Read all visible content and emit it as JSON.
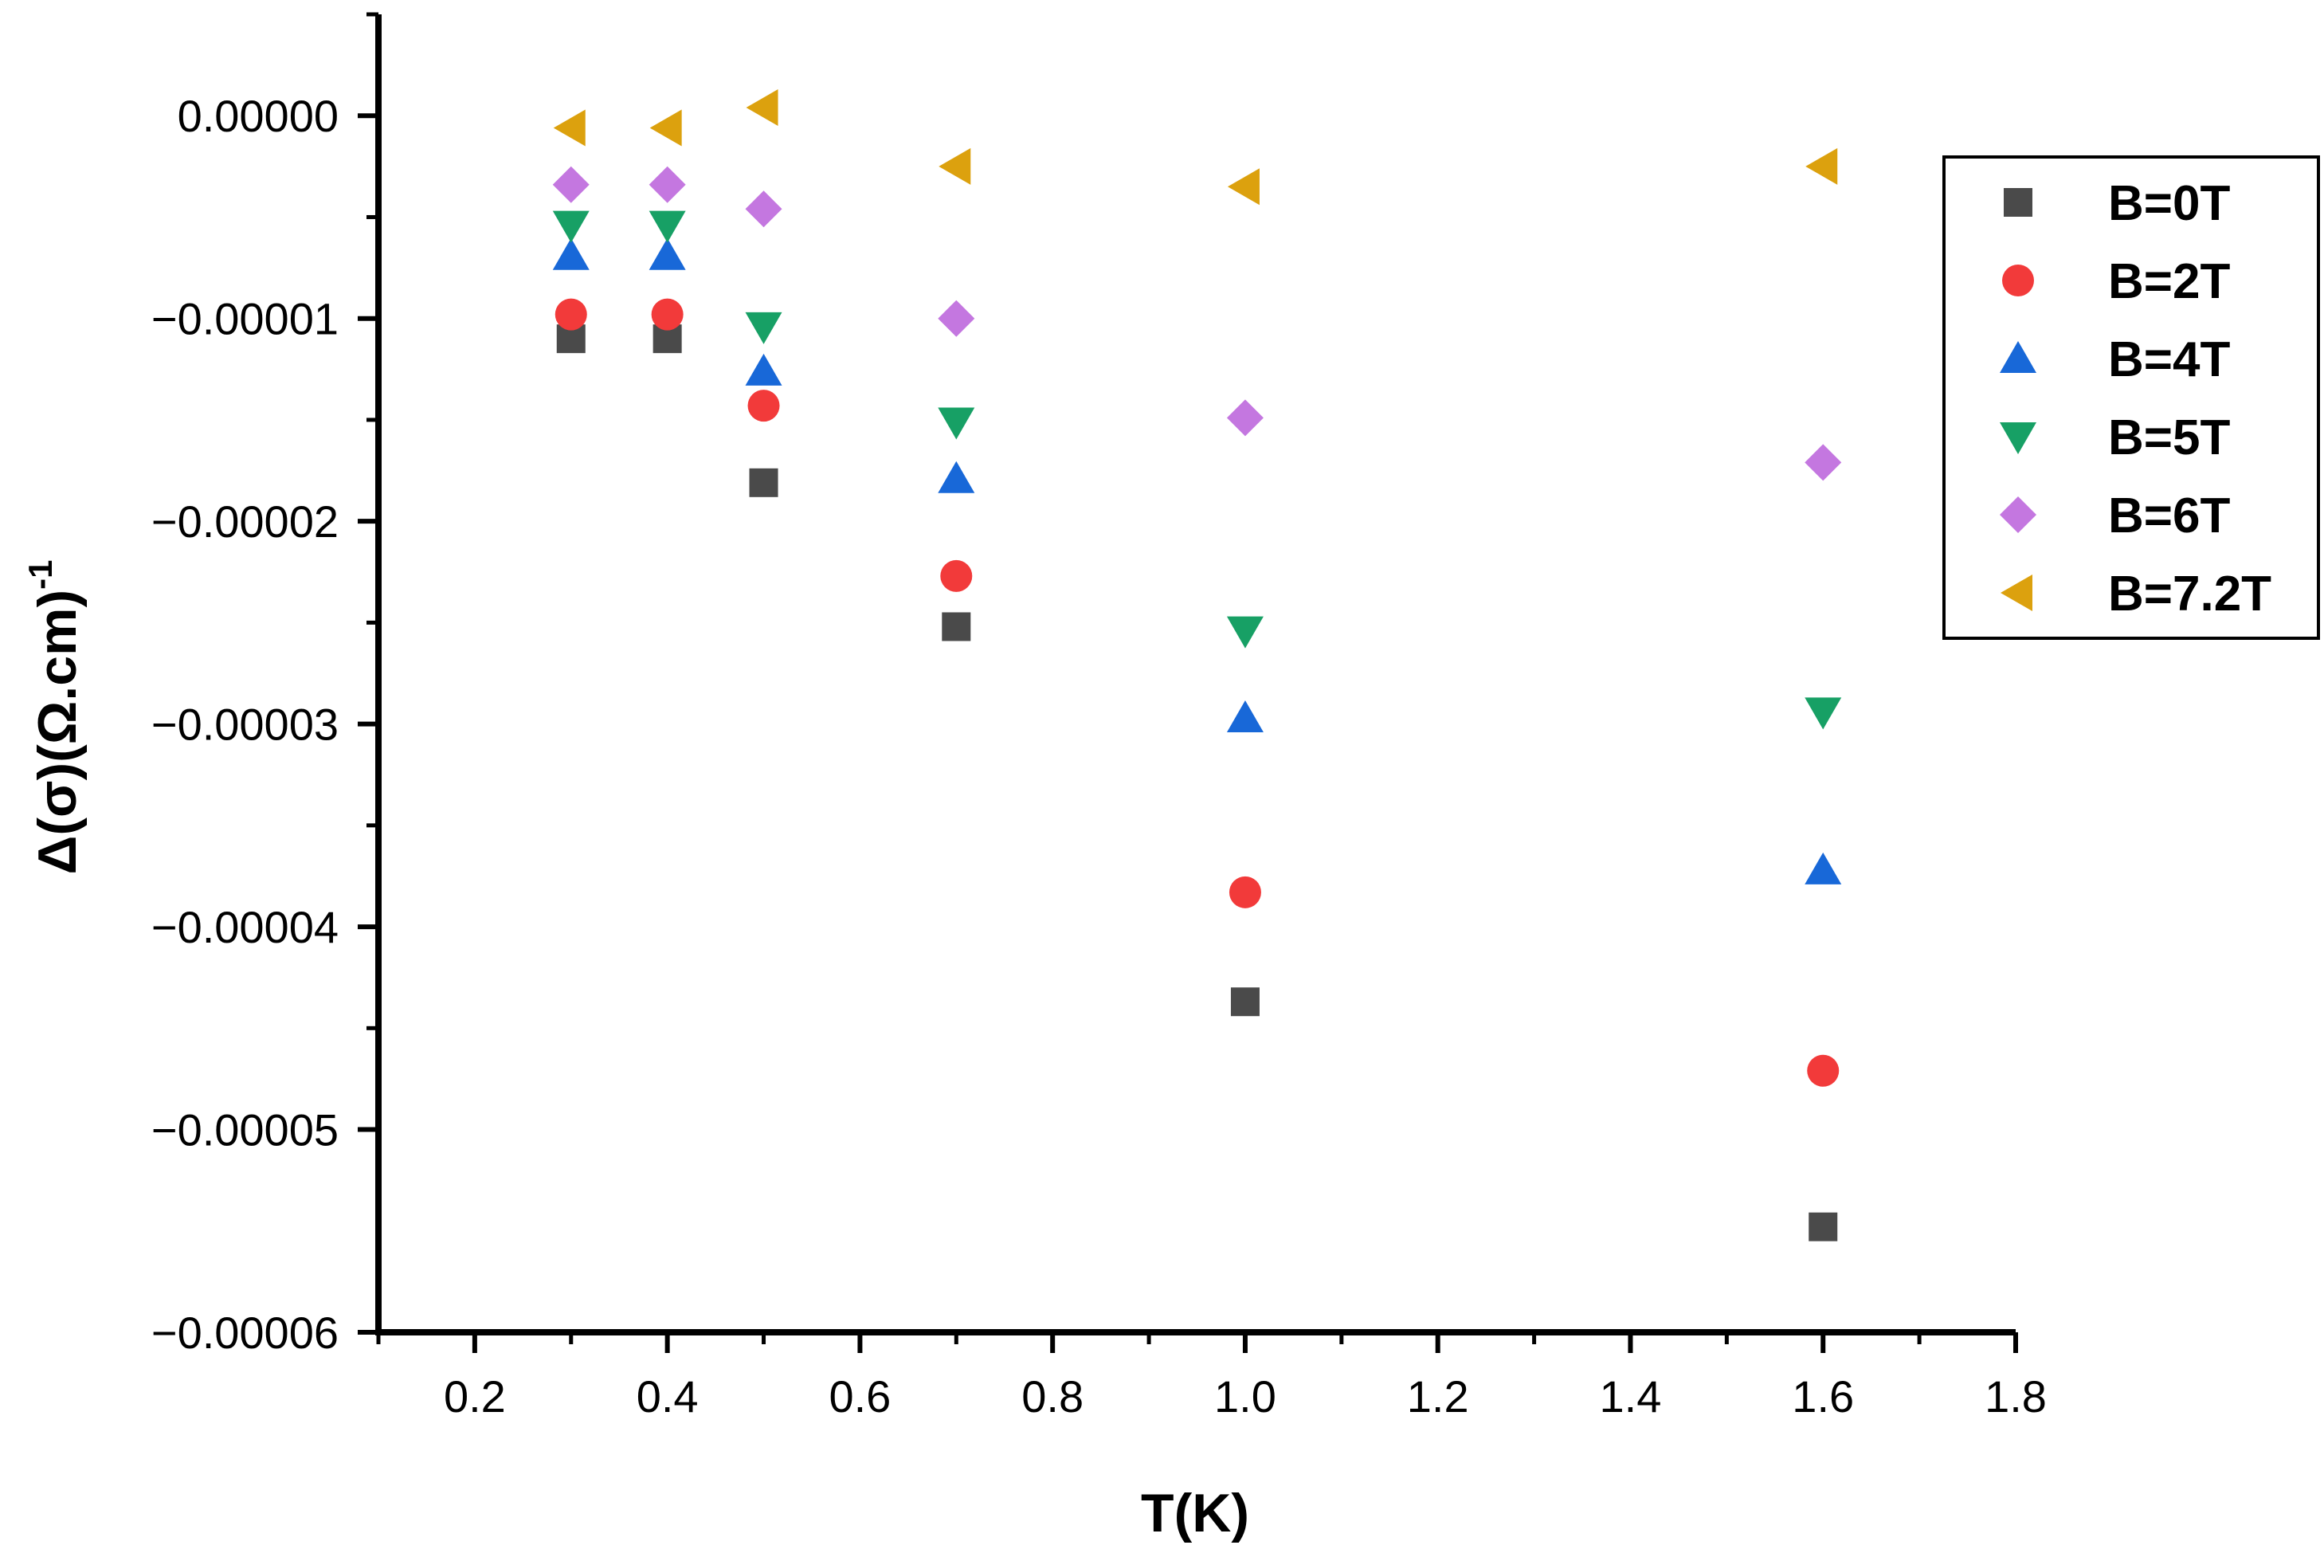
{
  "chart_data": {
    "type": "scatter",
    "title": "",
    "xlabel": "T(K)",
    "ylabel_main": "Δ(σ)(Ω.cm)",
    "ylabel_superscript": "-1",
    "xlim": [
      0.1,
      1.8
    ],
    "ylim": [
      -6e-05,
      5e-06
    ],
    "x_ticks": [
      0.2,
      0.4,
      0.6,
      0.8,
      1.0,
      1.2,
      1.4,
      1.6,
      1.8
    ],
    "x_tick_labels": [
      "0.2",
      "0.4",
      "0.6",
      "0.8",
      "1.0",
      "1.2",
      "1.4",
      "1.6",
      "1.8"
    ],
    "y_ticks": [
      0,
      -1e-05,
      -2e-05,
      -3e-05,
      -4e-05,
      -5e-05,
      -6e-05
    ],
    "y_tick_labels": [
      "0.00000",
      "−0.00001",
      "−0.00002",
      "−0.00003",
      "−0.00004",
      "−0.00005",
      "−0.00006"
    ],
    "x": [
      0.3,
      0.4,
      0.5,
      0.7,
      1.0,
      1.6
    ],
    "legend_position": "top-right",
    "series": [
      {
        "name": "B=0T",
        "marker": "square",
        "color": "#4a4a4a",
        "values": [
          -1.1e-05,
          -1.1e-05,
          -1.81e-05,
          -2.52e-05,
          -4.37e-05,
          -5.48e-05
        ]
      },
      {
        "name": "B=2T",
        "marker": "circle",
        "color": "#f23a3a",
        "values": [
          -9.8e-06,
          -9.8e-06,
          -1.43e-05,
          -2.27e-05,
          -3.83e-05,
          -4.71e-05
        ]
      },
      {
        "name": "B=4T",
        "marker": "triangle-up",
        "color": "#1868d8",
        "values": [
          -6.9e-06,
          -6.9e-06,
          -1.26e-05,
          -1.79e-05,
          -2.97e-05,
          -3.72e-05
        ]
      },
      {
        "name": "B=5T",
        "marker": "triangle-down",
        "color": "#17a065",
        "values": [
          -5.4e-06,
          -5.4e-06,
          -1.04e-05,
          -1.51e-05,
          -2.54e-05,
          -2.94e-05
        ]
      },
      {
        "name": "B=6T",
        "marker": "diamond",
        "color": "#c477e0",
        "values": [
          -3.4e-06,
          -3.4e-06,
          -4.6e-06,
          -1e-05,
          -1.49e-05,
          -1.71e-05
        ]
      },
      {
        "name": "B=7.2T",
        "marker": "triangle-left",
        "color": "#dca10e",
        "values": [
          -6e-07,
          -6e-07,
          4e-07,
          -2.5e-06,
          -3.5e-06,
          -2.5e-06
        ]
      }
    ]
  }
}
